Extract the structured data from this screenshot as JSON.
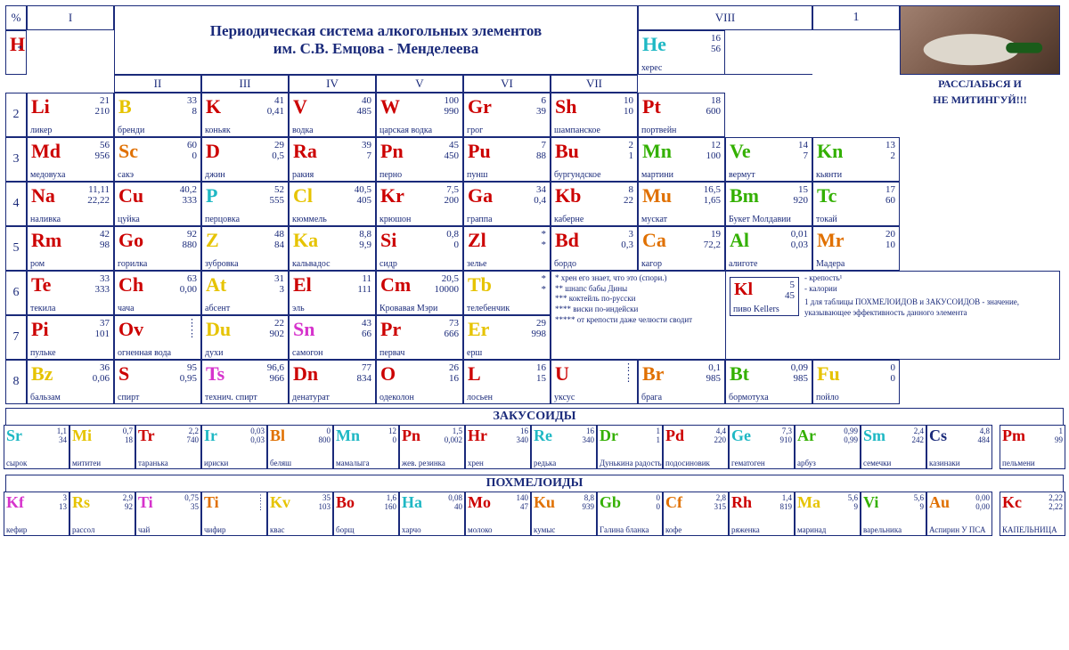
{
  "title_line1": "Периодическая система алкогольных элементов",
  "title_line2": "им. С.В. Емцова - Менделеева",
  "slogan1": "РАССЛАБЬСЯ И",
  "slogan2": "НЕ МИТИНГУЙ!!!",
  "headers": {
    "pct": "%",
    "g1": "I",
    "g2": "II",
    "g3": "III",
    "g4": "IV",
    "g5": "V",
    "g6": "VI",
    "g7": "VII",
    "g8": "VIII"
  },
  "subtitles": {
    "z": "ЗАКУСОИДЫ",
    "p": "ПОХМЕЛОИДЫ"
  },
  "legend_footnotes": {
    "f1": "* хрен его знает, что это (спори.)",
    "f2": "** шнапс бабы Дины",
    "f3": "*** коктейль по-русски",
    "f4": "**** виски по-индейски",
    "f5": "***** от крепости даже челюсти сводит"
  },
  "legend_key": {
    "sym": "Kl",
    "n1": "5",
    "n2": "45",
    "name": "пиво Kellers",
    "l1": "- крепость¹",
    "l2": "- калории",
    "note": "1 для таблицы ПОХМЕЛОИДОВ и ЗАКУСОИДОВ - значение, указывающее эффективность данного элемента"
  },
  "colors": {
    "red": "#cc0000",
    "orange": "#e07000",
    "yellow": "#e6c300",
    "green": "#33b000",
    "cyan": "#1fb8c4",
    "blue": "#1a2a7a",
    "magenta": "#d633cc"
  },
  "periods": [
    "1",
    "2",
    "3",
    "4",
    "5",
    "6",
    "7",
    "8"
  ],
  "cells": {
    "H": {
      "sym": "H",
      "n1": "",
      "n2": "*",
      "name": "",
      "color": "red"
    },
    "He": {
      "sym": "He",
      "n1": "16",
      "n2": "56",
      "name": "херес",
      "color": "cyan"
    },
    "Li": {
      "sym": "Li",
      "n1": "21",
      "n2": "210",
      "name": "ликер",
      "color": "red"
    },
    "B": {
      "sym": "B",
      "n1": "33",
      "n2": "8",
      "name": "бренди",
      "color": "yellow"
    },
    "K": {
      "sym": "K",
      "n1": "41",
      "n2": "0,41",
      "name": "коньяк",
      "color": "red"
    },
    "V": {
      "sym": "V",
      "n1": "40",
      "n2": "485",
      "name": "водка",
      "color": "red"
    },
    "W": {
      "sym": "W",
      "n1": "100",
      "n2": "990",
      "name": "царская водка",
      "color": "red"
    },
    "Gr": {
      "sym": "Gr",
      "n1": "6",
      "n2": "39",
      "name": "грог",
      "color": "red"
    },
    "Sh": {
      "sym": "Sh",
      "n1": "10",
      "n2": "10",
      "name": "шампанское",
      "color": "red"
    },
    "Pt": {
      "sym": "Pt",
      "n1": "18",
      "n2": "600",
      "name": "портвейн",
      "color": "red"
    },
    "Md": {
      "sym": "Md",
      "n1": "56",
      "n2": "956",
      "name": "медовуха",
      "color": "red"
    },
    "Sc": {
      "sym": "Sc",
      "n1": "60",
      "n2": "0",
      "name": "сакэ",
      "color": "orange"
    },
    "D": {
      "sym": "D",
      "n1": "29",
      "n2": "0,5",
      "name": "джин",
      "color": "red"
    },
    "Ra": {
      "sym": "Ra",
      "n1": "39",
      "n2": "7",
      "name": "ракия",
      "color": "red"
    },
    "Pn": {
      "sym": "Pn",
      "n1": "45",
      "n2": "450",
      "name": "перно",
      "color": "red"
    },
    "Pu": {
      "sym": "Pu",
      "n1": "7",
      "n2": "88",
      "name": "пунш",
      "color": "red"
    },
    "Bu": {
      "sym": "Bu",
      "n1": "2",
      "n2": "1",
      "name": "бургундское",
      "color": "red"
    },
    "Mn": {
      "sym": "Mn",
      "n1": "12",
      "n2": "100",
      "name": "мартини",
      "color": "green"
    },
    "Ve": {
      "sym": "Ve",
      "n1": "14",
      "n2": "7",
      "name": "вермут",
      "color": "green"
    },
    "Kn": {
      "sym": "Kn",
      "n1": "13",
      "n2": "2",
      "name": "кьянти",
      "color": "green"
    },
    "Na": {
      "sym": "Na",
      "n1": "11,11",
      "n2": "22,22",
      "name": "наливка",
      "color": "red"
    },
    "Cu": {
      "sym": "Cu",
      "n1": "40,2",
      "n2": "333",
      "name": "цуйка",
      "color": "red"
    },
    "P": {
      "sym": "P",
      "n1": "52",
      "n2": "555",
      "name": "перцовка",
      "color": "cyan"
    },
    "Cl": {
      "sym": "Cl",
      "n1": "40,5",
      "n2": "405",
      "name": "кюммель",
      "color": "yellow"
    },
    "Kr": {
      "sym": "Kr",
      "n1": "7,5",
      "n2": "200",
      "name": "крюшон",
      "color": "red"
    },
    "Ga": {
      "sym": "Ga",
      "n1": "34",
      "n2": "0,4",
      "name": "граппа",
      "color": "red"
    },
    "Kb": {
      "sym": "Kb",
      "n1": "8",
      "n2": "22",
      "name": "каберне",
      "color": "red"
    },
    "Mu": {
      "sym": "Mu",
      "n1": "16,5",
      "n2": "1,65",
      "name": "мускат",
      "color": "orange"
    },
    "Bm": {
      "sym": "Bm",
      "n1": "15",
      "n2": "920",
      "name": "Букет Молдавии",
      "color": "green"
    },
    "Tc": {
      "sym": "Tc",
      "n1": "17",
      "n2": "60",
      "name": "токай",
      "color": "green"
    },
    "Rm": {
      "sym": "Rm",
      "n1": "42",
      "n2": "98",
      "name": "ром",
      "color": "red"
    },
    "Go": {
      "sym": "Go",
      "n1": "92",
      "n2": "880",
      "name": "горилка",
      "color": "red"
    },
    "Z": {
      "sym": "Z",
      "n1": "48",
      "n2": "84",
      "name": "зубровка",
      "color": "yellow"
    },
    "Ka": {
      "sym": "Ka",
      "n1": "8,8",
      "n2": "9,9",
      "name": "кальвадос",
      "color": "yellow"
    },
    "Si": {
      "sym": "Si",
      "n1": "0,8",
      "n2": "0",
      "name": "сидр",
      "color": "red"
    },
    "Zl": {
      "sym": "Zl",
      "n1": "*",
      "n2": "*",
      "name": "зелье",
      "color": "red"
    },
    "Bd": {
      "sym": "Bd",
      "n1": "3",
      "n2": "0,3",
      "name": "бордо",
      "color": "red"
    },
    "Ca": {
      "sym": "Ca",
      "n1": "19",
      "n2": "72,2",
      "name": "кагор",
      "color": "orange"
    },
    "Al": {
      "sym": "Al",
      "n1": "0,01",
      "n2": "0,03",
      "name": "алиготе",
      "color": "green"
    },
    "Mr": {
      "sym": "Mr",
      "n1": "20",
      "n2": "10",
      "name": "Мадера",
      "color": "orange"
    },
    "Te": {
      "sym": "Te",
      "n1": "33",
      "n2": "333",
      "name": "текила",
      "color": "red"
    },
    "Ch": {
      "sym": "Ch",
      "n1": "63",
      "n2": "0,00",
      "name": "чача",
      "color": "red"
    },
    "At": {
      "sym": "At",
      "n1": "31",
      "n2": "3",
      "name": "абсент",
      "color": "yellow"
    },
    "El": {
      "sym": "El",
      "n1": "11",
      "n2": "111",
      "name": "эль",
      "color": "red"
    },
    "Cm": {
      "sym": "Cm",
      "n1": "20,5",
      "n2": "10000",
      "name": "Кровавая Мэри",
      "color": "red"
    },
    "Tb": {
      "sym": "Tb",
      "n1": "*",
      "n2": "*",
      "name": "телебенчик",
      "color": "yellow"
    },
    "Pi": {
      "sym": "Pi",
      "n1": "37",
      "n2": "101",
      "name": "пульке",
      "color": "red"
    },
    "Ov": {
      "sym": "Ov",
      "n1": "⋮",
      "n2": "⋮",
      "name": "огненная вода",
      "color": "red"
    },
    "Du": {
      "sym": "Du",
      "n1": "22",
      "n2": "902",
      "name": "духи",
      "color": "yellow"
    },
    "Sn": {
      "sym": "Sn",
      "n1": "43",
      "n2": "66",
      "name": "самогон",
      "color": "magenta"
    },
    "Pr": {
      "sym": "Pr",
      "n1": "73",
      "n2": "666",
      "name": "первач",
      "color": "red"
    },
    "Er": {
      "sym": "Er",
      "n1": "29",
      "n2": "998",
      "name": "ерш",
      "color": "yellow"
    },
    "Bz": {
      "sym": "Bz",
      "n1": "36",
      "n2": "0,06",
      "name": "бальзам",
      "color": "yellow"
    },
    "S": {
      "sym": "S",
      "n1": "95",
      "n2": "0,95",
      "name": "спирт",
      "color": "red"
    },
    "Ts": {
      "sym": "Ts",
      "n1": "96,6",
      "n2": "966",
      "name": "технич. спирт",
      "color": "magenta"
    },
    "Dn": {
      "sym": "Dn",
      "n1": "77",
      "n2": "834",
      "name": "денатурат",
      "color": "red"
    },
    "O": {
      "sym": "O",
      "n1": "26",
      "n2": "16",
      "name": "одеколон",
      "color": "red"
    },
    "L": {
      "sym": "L",
      "n1": "16",
      "n2": "15",
      "name": "лосьен",
      "color": "red"
    },
    "U": {
      "sym": "U",
      "n1": "⋮",
      "n2": "⋮",
      "name": "уксус",
      "color": "red"
    },
    "Br": {
      "sym": "Br",
      "n1": "0,1",
      "n2": "985",
      "name": "брага",
      "color": "orange"
    },
    "Bt": {
      "sym": "Bt",
      "n1": "0,09",
      "n2": "985",
      "name": "бормотуха",
      "color": "green"
    },
    "Fu": {
      "sym": "Fu",
      "n1": "0",
      "n2": "0",
      "name": "пойло",
      "color": "yellow"
    }
  },
  "zak": [
    {
      "sym": "Sr",
      "n1": "1,1",
      "n2": "34",
      "name": "сырок",
      "color": "cyan"
    },
    {
      "sym": "Mi",
      "n1": "0,7",
      "n2": "18",
      "name": "мититеи",
      "color": "yellow"
    },
    {
      "sym": "Tr",
      "n1": "2,2",
      "n2": "740",
      "name": "таранька",
      "color": "red"
    },
    {
      "sym": "Ir",
      "n1": "0,03",
      "n2": "0,03",
      "name": "ириски",
      "color": "cyan"
    },
    {
      "sym": "Bl",
      "n1": "0",
      "n2": "800",
      "name": "беляш",
      "color": "orange"
    },
    {
      "sym": "Mn",
      "n1": "12",
      "n2": "0",
      "name": "мамалыга",
      "color": "cyan"
    },
    {
      "sym": "Pn",
      "n1": "1,5",
      "n2": "0,002",
      "name": "жев. резинка",
      "color": "red"
    },
    {
      "sym": "Hr",
      "n1": "16",
      "n2": "340",
      "name": "хрен",
      "color": "red"
    },
    {
      "sym": "Re",
      "n1": "16",
      "n2": "340",
      "name": "редька",
      "color": "cyan"
    },
    {
      "sym": "Dr",
      "n1": "1",
      "n2": "1",
      "name": "Дунькина радость",
      "color": "green"
    },
    {
      "sym": "Pd",
      "n1": "4,4",
      "n2": "220",
      "name": "подосиновик",
      "color": "red"
    },
    {
      "sym": "Ge",
      "n1": "7,3",
      "n2": "910",
      "name": "гематоген",
      "color": "cyan"
    },
    {
      "sym": "Ar",
      "n1": "0,99",
      "n2": "0,99",
      "name": "арбуз",
      "color": "green"
    },
    {
      "sym": "Sm",
      "n1": "2,4",
      "n2": "242",
      "name": "семечки",
      "color": "cyan"
    },
    {
      "sym": "Cs",
      "n1": "4,8",
      "n2": "484",
      "name": "казинаки",
      "color": "blue"
    }
  ],
  "zak_extra": {
    "sym": "Pm",
    "n1": "1",
    "n2": "99",
    "n3": "9",
    "name": "пельмени",
    "color": "red"
  },
  "pokh": [
    {
      "sym": "Kf",
      "n1": "3",
      "n2": "13",
      "name": "кефир",
      "color": "magenta"
    },
    {
      "sym": "Rs",
      "n1": "2,9",
      "n2": "92",
      "name": "рассол",
      "color": "yellow"
    },
    {
      "sym": "Ti",
      "n1": "0,75",
      "n2": "35",
      "name": "чай",
      "color": "magenta"
    },
    {
      "sym": "Ti",
      "n1": "⋮",
      "n2": "⋮",
      "name": "чифир",
      "color": "orange"
    },
    {
      "sym": "Kv",
      "n1": "35",
      "n2": "103",
      "name": "квас",
      "color": "yellow"
    },
    {
      "sym": "Bo",
      "n1": "1,6",
      "n2": "160",
      "name": "борщ",
      "color": "red"
    },
    {
      "sym": "Ha",
      "n1": "0,08",
      "n2": "40",
      "name": "харчо",
      "color": "cyan"
    },
    {
      "sym": "Mo",
      "n1": "140",
      "n2": "47",
      "name": "молоко",
      "color": "red"
    },
    {
      "sym": "Ku",
      "n1": "8,8",
      "n2": "939",
      "name": "кумыс",
      "color": "orange"
    },
    {
      "sym": "Gb",
      "n1": "0",
      "n2": "0",
      "name": "Галина бланка",
      "color": "green"
    },
    {
      "sym": "Cf",
      "n1": "2,8",
      "n2": "315",
      "name": "кофе",
      "color": "orange"
    },
    {
      "sym": "Rh",
      "n1": "1,4",
      "n2": "819",
      "name": "ряженка",
      "color": "red"
    },
    {
      "sym": "Ma",
      "n1": "5,6",
      "n2": "9",
      "name": "маринад",
      "color": "yellow"
    },
    {
      "sym": "Vi",
      "n1": "5,6",
      "n2": "9",
      "name": "варельника",
      "color": "green"
    },
    {
      "sym": "Au",
      "n1": "0,00",
      "n2": "0,00",
      "name": "Аспирин У ПСА",
      "color": "orange"
    }
  ],
  "pokh_extra": {
    "sym": "Kc",
    "n1": "2,22",
    "n2": "2,22",
    "name": "КАПЕЛЬНИЦА",
    "color": "red"
  }
}
